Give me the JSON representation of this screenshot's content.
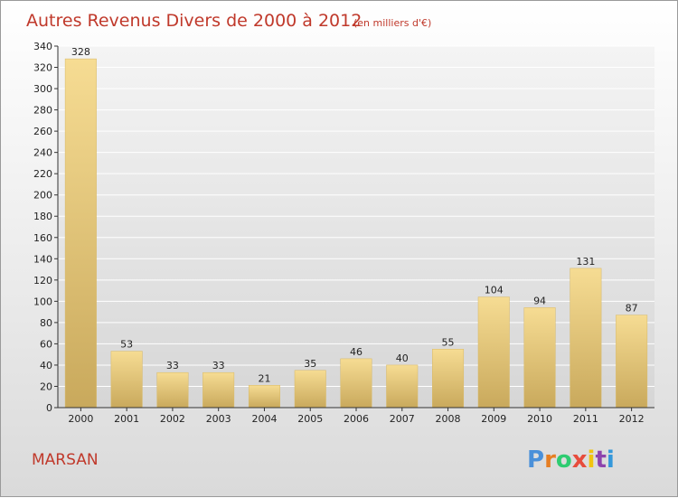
{
  "header": {
    "title": "Autres Revenus Divers de 2000 à 2012",
    "unit_note": "(en milliers d'€)"
  },
  "footer": {
    "city": "MARSAN",
    "brand_letters": [
      "P",
      "r",
      "o",
      "x",
      "i",
      "t",
      "i"
    ],
    "brand_colors": [
      "#4a90d9",
      "#e67e22",
      "#2ecc71",
      "#e74c3c",
      "#f1c40f",
      "#8e44ad",
      "#3498db"
    ]
  },
  "chart_data": {
    "type": "bar",
    "title": "Autres Revenus Divers de 2000 à 2012",
    "subtitle": "(en milliers d'€)",
    "xlabel": "",
    "ylabel": "",
    "categories": [
      "2000",
      "2001",
      "2002",
      "2003",
      "2004",
      "2005",
      "2006",
      "2007",
      "2008",
      "2009",
      "2010",
      "2011",
      "2012"
    ],
    "values": [
      328,
      53,
      33,
      33,
      21,
      35,
      46,
      40,
      55,
      104,
      94,
      131,
      87
    ],
    "ylim": [
      0,
      340
    ],
    "yticks": [
      0,
      20,
      40,
      60,
      80,
      100,
      120,
      140,
      160,
      180,
      200,
      220,
      240,
      260,
      280,
      300,
      320,
      340
    ],
    "grid": true,
    "legend": "none",
    "bar_color": "#e8c66f"
  }
}
